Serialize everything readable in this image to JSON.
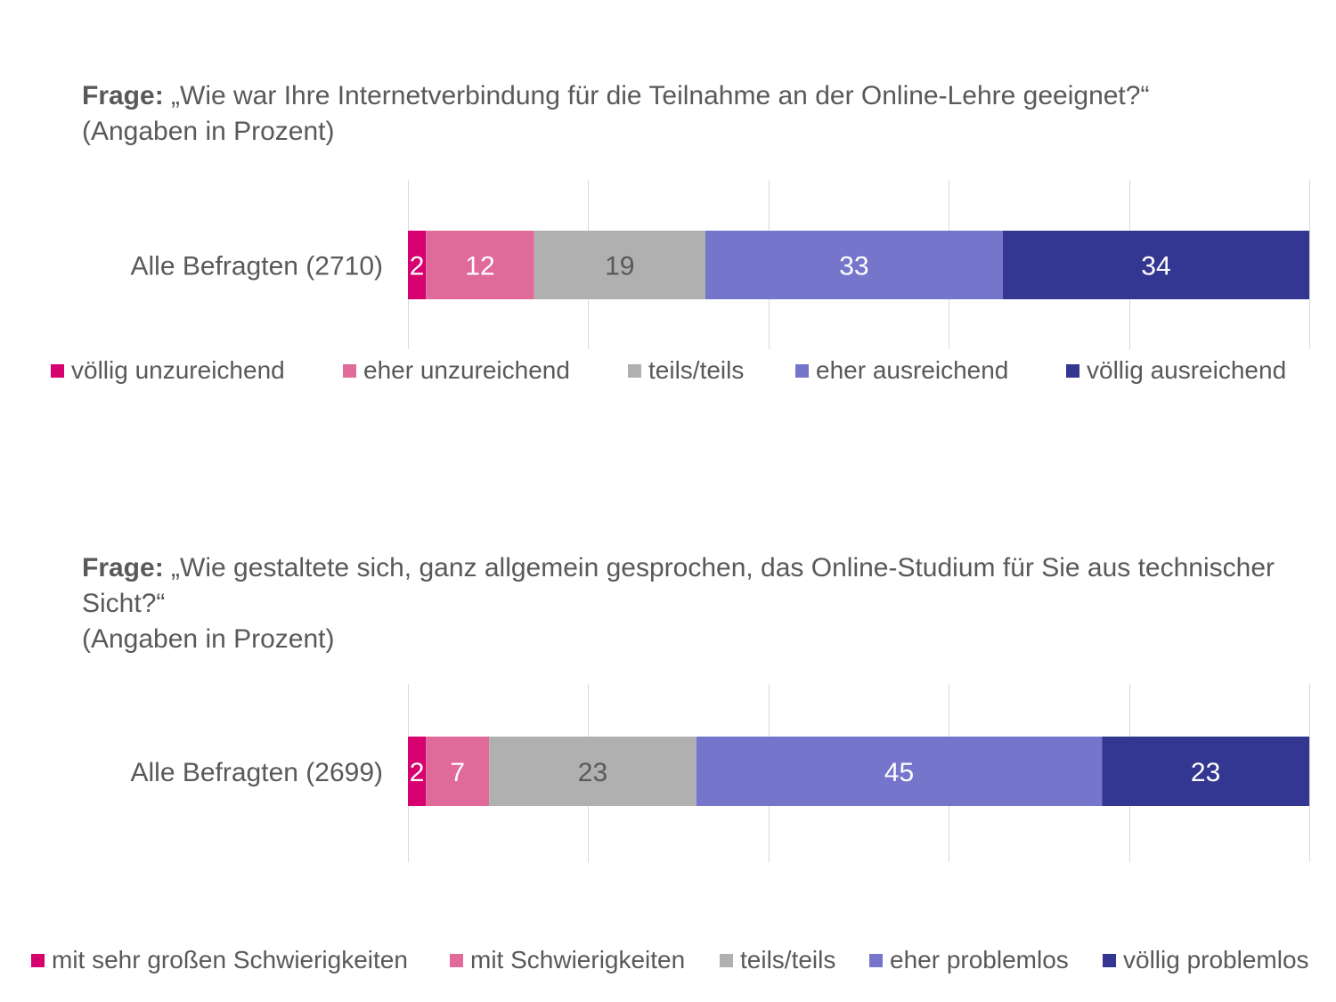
{
  "chart_data": [
    {
      "type": "bar",
      "stacked": true,
      "orientation": "horizontal",
      "title_bold": "Frage:",
      "title": "„Wie war Ihre Internetverbindung für die Teilnahme an der Online-Lehre geeignet?“",
      "subtitle": "(Angaben in Prozent)",
      "categories": [
        "Alle Befragten (2710)"
      ],
      "xlim": [
        0,
        100
      ],
      "grid": true,
      "legend_position": "bottom",
      "series": [
        {
          "name": "völlig unzureichend",
          "values": [
            2
          ],
          "color": "#D6006F",
          "label_color": "#ffffff"
        },
        {
          "name": "eher unzureichend",
          "values": [
            12
          ],
          "color": "#E06A9A",
          "label_color": "#ffffff"
        },
        {
          "name": "teils/teils",
          "values": [
            19
          ],
          "color": "#B0B0B0",
          "label_color": "#595959"
        },
        {
          "name": "eher ausreichend",
          "values": [
            33
          ],
          "color": "#7575CC",
          "label_color": "#ffffff"
        },
        {
          "name": "völlig ausreichend",
          "values": [
            34
          ],
          "color": "#343791",
          "label_color": "#ffffff"
        }
      ]
    },
    {
      "type": "bar",
      "stacked": true,
      "orientation": "horizontal",
      "title_bold": "Frage:",
      "title": "„Wie gestaltete sich, ganz allgemein gesprochen, das Online-Studium für Sie aus technischer Sicht?“",
      "subtitle": "(Angaben in Prozent)",
      "categories": [
        "Alle Befragten (2699)"
      ],
      "xlim": [
        0,
        100
      ],
      "grid": true,
      "legend_position": "bottom",
      "series": [
        {
          "name": "mit sehr großen Schwierigkeiten",
          "values": [
            2
          ],
          "color": "#D6006F",
          "label_color": "#ffffff"
        },
        {
          "name": "mit Schwierigkeiten",
          "values": [
            7
          ],
          "color": "#E06A9A",
          "label_color": "#ffffff"
        },
        {
          "name": "teils/teils",
          "values": [
            23
          ],
          "color": "#B0B0B0",
          "label_color": "#595959"
        },
        {
          "name": "eher problemlos",
          "values": [
            45
          ],
          "color": "#7575CC",
          "label_color": "#ffffff"
        },
        {
          "name": "völlig problemlos",
          "values": [
            23
          ],
          "color": "#343791",
          "label_color": "#ffffff"
        }
      ]
    }
  ]
}
